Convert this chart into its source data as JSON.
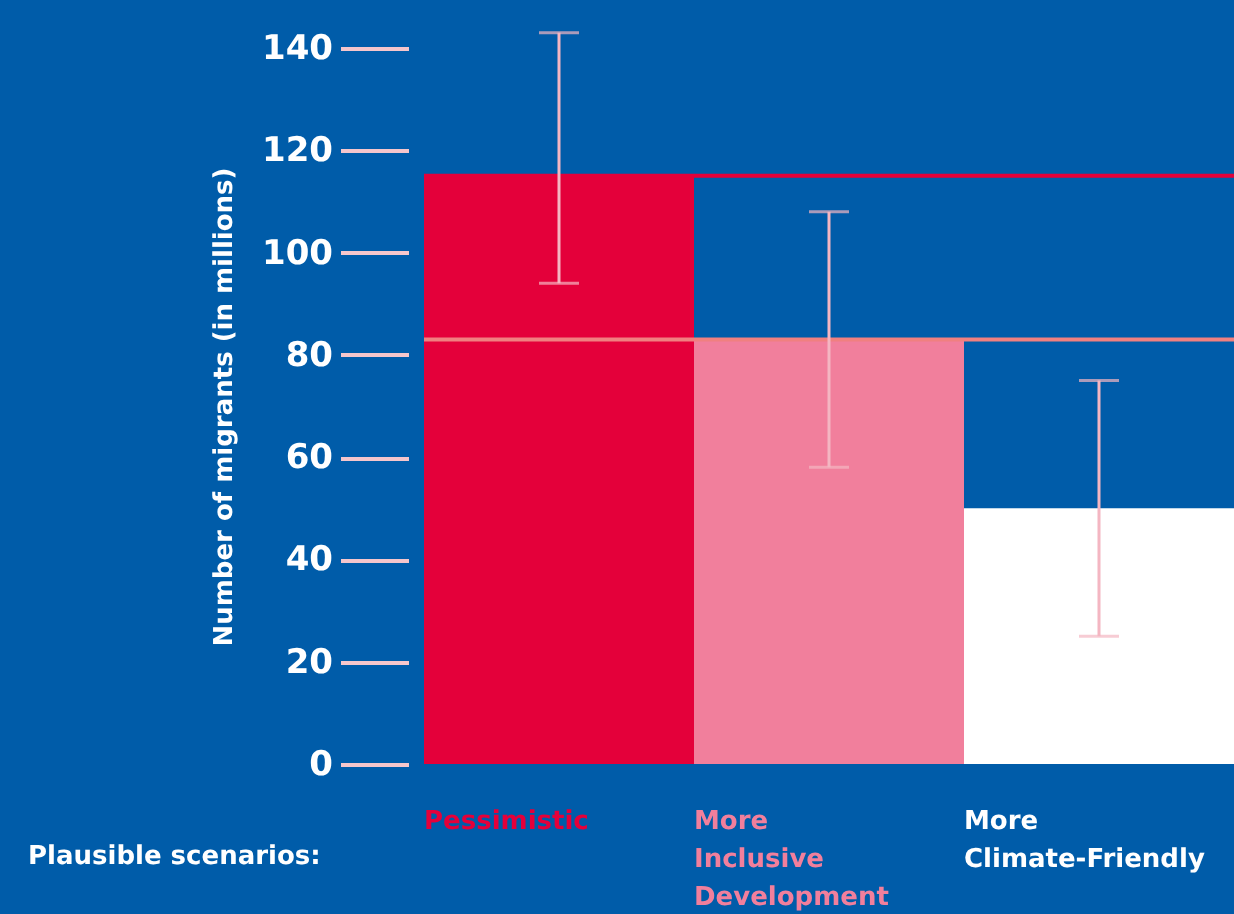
{
  "chart_data": {
    "type": "bar",
    "ylabel": "Number of migrants (in millions)",
    "categories": [
      "Pessimistic",
      "More Inclusive Development",
      "More Climate-Friendly"
    ],
    "values": [
      115,
      83,
      50
    ],
    "colors": [
      "#e4003a",
      "#f17f9c",
      "#ffffff"
    ],
    "errors": [
      [
        94,
        143
      ],
      [
        58,
        108
      ],
      [
        25,
        75
      ]
    ],
    "ylim": [
      0,
      140
    ],
    "yticks": [
      0,
      20,
      40,
      60,
      80,
      100,
      120,
      140
    ],
    "ref_lines": [
      {
        "axis": "y",
        "value": 115,
        "color": "#e4003a"
      },
      {
        "axis": "y",
        "value": 83,
        "color": "#f08080"
      }
    ],
    "annotations": [
      "Plausible scenarios:"
    ],
    "grid": false
  }
}
